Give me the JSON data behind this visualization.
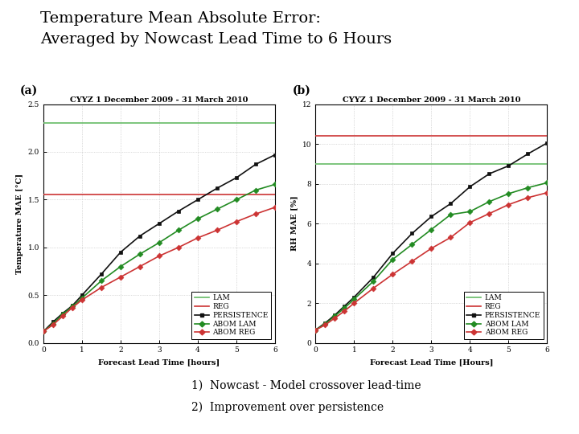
{
  "title_line1": "Temperature Mean Absolute Error:",
  "title_line2": "Averaged by Nowcast Lead Time to 6 Hours",
  "footnote1": "1)  Nowcast - Model crossover lead-time",
  "footnote2": "2)  Improvement over persistence",
  "panel_a": {
    "label": "(a)",
    "subtitle": "CYYZ 1 December 2009 - 31 March 2010",
    "xlabel": "Forecast Lead Time [hours]",
    "ylabel": "Temperature MAE [°C]",
    "ylim": [
      0,
      2.5
    ],
    "yticks": [
      0,
      0.5,
      1.0,
      1.5,
      2.0,
      2.5
    ],
    "xlim": [
      0,
      6
    ],
    "xticks": [
      0,
      1,
      2,
      3,
      4,
      5,
      6
    ],
    "series": {
      "LAM": {
        "x": [
          0,
          6
        ],
        "y": [
          2.3,
          2.3
        ],
        "color": "#66bb66",
        "linewidth": 1.2,
        "marker": null,
        "linestyle": "-"
      },
      "REG": {
        "x": [
          0,
          6
        ],
        "y": [
          1.55,
          1.55
        ],
        "color": "#cc3333",
        "linewidth": 1.2,
        "marker": null,
        "linestyle": "-"
      },
      "PERSISTENCE": {
        "x": [
          0,
          0.25,
          0.5,
          0.75,
          1.0,
          1.5,
          2.0,
          2.5,
          3.0,
          3.5,
          4.0,
          4.5,
          5.0,
          5.5,
          6.0
        ],
        "y": [
          0.12,
          0.22,
          0.31,
          0.39,
          0.5,
          0.72,
          0.95,
          1.12,
          1.25,
          1.38,
          1.5,
          1.62,
          1.73,
          1.87,
          1.97
        ],
        "color": "#111111",
        "linewidth": 1.2,
        "marker": "s",
        "markersize": 3.5,
        "linestyle": "-"
      },
      "ABOM LAM": {
        "x": [
          0,
          0.25,
          0.5,
          0.75,
          1.0,
          1.5,
          2.0,
          2.5,
          3.0,
          3.5,
          4.0,
          4.5,
          5.0,
          5.5,
          6.0
        ],
        "y": [
          0.12,
          0.2,
          0.3,
          0.38,
          0.47,
          0.65,
          0.8,
          0.93,
          1.05,
          1.18,
          1.3,
          1.4,
          1.5,
          1.6,
          1.66
        ],
        "color": "#228b22",
        "linewidth": 1.2,
        "marker": "D",
        "markersize": 3.5,
        "linestyle": "-"
      },
      "ABOM REG": {
        "x": [
          0,
          0.25,
          0.5,
          0.75,
          1.0,
          1.5,
          2.0,
          2.5,
          3.0,
          3.5,
          4.0,
          4.5,
          5.0,
          5.5,
          6.0
        ],
        "y": [
          0.12,
          0.19,
          0.28,
          0.37,
          0.45,
          0.58,
          0.69,
          0.8,
          0.91,
          1.0,
          1.1,
          1.18,
          1.27,
          1.35,
          1.42
        ],
        "color": "#cc3333",
        "linewidth": 1.2,
        "marker": "D",
        "markersize": 3.5,
        "linestyle": "-"
      }
    }
  },
  "panel_b": {
    "label": "(b)",
    "subtitle": "CYYZ 1 December 2009 - 31 March 2010",
    "xlabel": "Forecast Lead Time [Hours]",
    "ylabel": "RH MAE [%]",
    "ylim": [
      0,
      12
    ],
    "yticks": [
      0,
      2,
      4,
      6,
      8,
      10,
      12
    ],
    "xlim": [
      0,
      6
    ],
    "xticks": [
      0,
      1,
      2,
      3,
      4,
      5,
      6
    ],
    "series": {
      "LAM": {
        "x": [
          0,
          6
        ],
        "y": [
          9.0,
          9.0
        ],
        "color": "#66bb66",
        "linewidth": 1.2,
        "marker": null,
        "linestyle": "-"
      },
      "REG": {
        "x": [
          0,
          6
        ],
        "y": [
          10.4,
          10.4
        ],
        "color": "#cc3333",
        "linewidth": 1.2,
        "marker": null,
        "linestyle": "-"
      },
      "PERSISTENCE": {
        "x": [
          0,
          0.25,
          0.5,
          0.75,
          1.0,
          1.5,
          2.0,
          2.5,
          3.0,
          3.5,
          4.0,
          4.5,
          5.0,
          5.5,
          6.0
        ],
        "y": [
          0.65,
          1.0,
          1.4,
          1.85,
          2.3,
          3.3,
          4.5,
          5.5,
          6.35,
          7.0,
          7.85,
          8.5,
          8.9,
          9.5,
          10.05
        ],
        "color": "#111111",
        "linewidth": 1.2,
        "marker": "s",
        "markersize": 3.5,
        "linestyle": "-"
      },
      "ABOM LAM": {
        "x": [
          0,
          0.25,
          0.5,
          0.75,
          1.0,
          1.5,
          2.0,
          2.5,
          3.0,
          3.5,
          4.0,
          4.5,
          5.0,
          5.5,
          6.0
        ],
        "y": [
          0.65,
          0.95,
          1.35,
          1.75,
          2.2,
          3.1,
          4.2,
          4.95,
          5.7,
          6.45,
          6.6,
          7.1,
          7.5,
          7.8,
          8.05
        ],
        "color": "#228b22",
        "linewidth": 1.2,
        "marker": "D",
        "markersize": 3.5,
        "linestyle": "-"
      },
      "ABOM REG": {
        "x": [
          0,
          0.25,
          0.5,
          0.75,
          1.0,
          1.5,
          2.0,
          2.5,
          3.0,
          3.5,
          4.0,
          4.5,
          5.0,
          5.5,
          6.0
        ],
        "y": [
          0.65,
          0.9,
          1.25,
          1.6,
          2.0,
          2.75,
          3.45,
          4.1,
          4.75,
          5.3,
          6.05,
          6.5,
          6.95,
          7.3,
          7.55
        ],
        "color": "#cc3333",
        "linewidth": 1.2,
        "marker": "D",
        "markersize": 3.5,
        "linestyle": "-"
      }
    }
  },
  "background_color": "#ffffff",
  "title_fontsize": 14,
  "subtitle_fontsize": 7,
  "axis_label_fontsize": 7,
  "tick_fontsize": 6.5,
  "legend_fontsize": 6.5,
  "footnote_fontsize": 10,
  "panel_label_fontsize": 10
}
